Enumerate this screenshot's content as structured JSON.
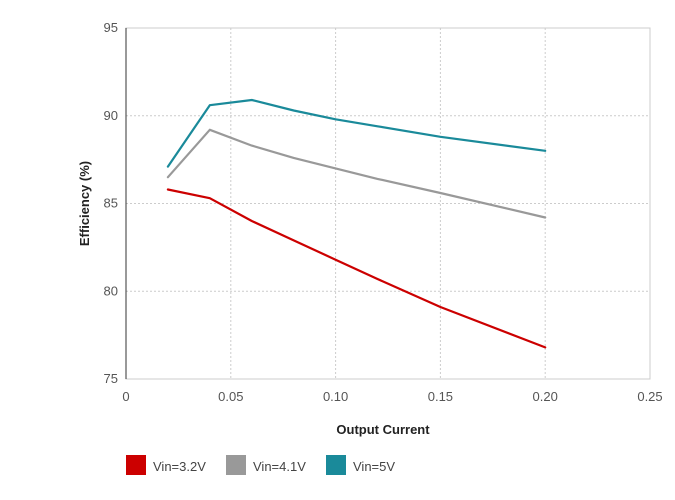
{
  "chart_data": {
    "type": "line",
    "title": "",
    "xlabel": "Output Current",
    "ylabel": "Efficiency (%)",
    "xlim": [
      0,
      0.25
    ],
    "ylim": [
      75,
      95
    ],
    "xticks": [
      0,
      0.05,
      0.1,
      0.15,
      0.2,
      0.25
    ],
    "xtick_labels": [
      "0",
      "0.05",
      "0.10",
      "0.15",
      "0.20",
      "0.25"
    ],
    "yticks": [
      75,
      80,
      85,
      90,
      95
    ],
    "ytick_labels": [
      "75",
      "80",
      "85",
      "90",
      "95"
    ],
    "grid": true,
    "legend_position": "bottom-left",
    "series": [
      {
        "name": "Vin=3.2V",
        "color": "#cc0000",
        "x": [
          0.02,
          0.04,
          0.06,
          0.08,
          0.1,
          0.12,
          0.15,
          0.2
        ],
        "y": [
          85.8,
          85.3,
          84.0,
          82.9,
          81.8,
          80.7,
          79.1,
          76.8
        ]
      },
      {
        "name": "Vin=4.1V",
        "color": "#999999",
        "x": [
          0.02,
          0.04,
          0.06,
          0.08,
          0.1,
          0.12,
          0.15,
          0.2
        ],
        "y": [
          86.5,
          89.2,
          88.3,
          87.6,
          87.0,
          86.4,
          85.6,
          84.2
        ]
      },
      {
        "name": "Vin=5V",
        "color": "#1a8a9a",
        "x": [
          0.02,
          0.04,
          0.06,
          0.08,
          0.1,
          0.12,
          0.15,
          0.2
        ],
        "y": [
          87.1,
          90.6,
          90.9,
          90.3,
          89.8,
          89.4,
          88.8,
          88.0
        ]
      }
    ]
  }
}
